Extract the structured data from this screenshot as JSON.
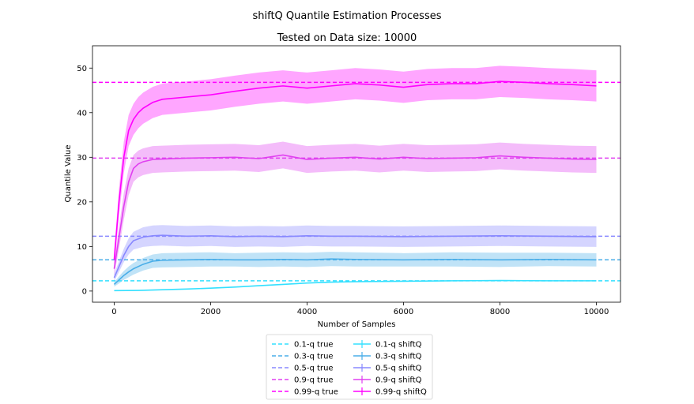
{
  "chart_data": {
    "type": "line",
    "suptitle": "shiftQ Quantile Estimation Processes",
    "title": "Tested on Data size: 10000",
    "xlabel": "Number of Samples",
    "ylabel": "Quantile Value",
    "xlim": [
      -450,
      10500
    ],
    "ylim": [
      -2.5,
      55
    ],
    "xticks": [
      0,
      2000,
      4000,
      6000,
      8000,
      10000
    ],
    "yticks": [
      0,
      10,
      20,
      30,
      40,
      50
    ],
    "grid": false,
    "legend_position": "below plot, two columns",
    "true_lines": [
      {
        "name": "0.1-q true",
        "value": 2.3,
        "color": "#33e0ff"
      },
      {
        "name": "0.3-q true",
        "value": 7.0,
        "color": "#4aaee8"
      },
      {
        "name": "0.5-q true",
        "value": 12.3,
        "color": "#8888ff"
      },
      {
        "name": "0.9-q true",
        "value": 29.8,
        "color": "#e040f0"
      },
      {
        "name": "0.99-q true",
        "value": 46.8,
        "color": "#ff00ff"
      }
    ],
    "series": [
      {
        "name": "0.1-q shiftQ",
        "color": "#33e0ff",
        "x": [
          0,
          500,
          1000,
          1500,
          2000,
          2500,
          3000,
          3500,
          4000,
          4500,
          5000,
          6000,
          7000,
          8000,
          9000,
          10000
        ],
        "y": [
          0.1,
          0.15,
          0.3,
          0.45,
          0.65,
          0.9,
          1.2,
          1.5,
          1.8,
          2.0,
          2.1,
          2.2,
          2.3,
          2.35,
          2.3,
          2.3
        ],
        "err": [
          0.05,
          0.05,
          0.05,
          0.06,
          0.06,
          0.07,
          0.08,
          0.08,
          0.1,
          0.1,
          0.1,
          0.12,
          0.12,
          0.12,
          0.12,
          0.12
        ]
      },
      {
        "name": "0.3-q shiftQ",
        "color": "#4aaee8",
        "x": [
          0,
          100,
          200,
          300,
          400,
          600,
          800,
          1000,
          1500,
          2000,
          2500,
          3000,
          3500,
          4000,
          4500,
          5000,
          6000,
          7000,
          8000,
          9000,
          10000
        ],
        "y": [
          1.5,
          2.5,
          3.5,
          4.3,
          5.0,
          6.0,
          6.7,
          6.9,
          7.0,
          7.1,
          7.0,
          7.0,
          7.1,
          7.0,
          7.2,
          7.1,
          7.0,
          7.1,
          7.0,
          7.1,
          7.0
        ],
        "err": [
          0.5,
          0.8,
          1.0,
          1.2,
          1.3,
          1.4,
          1.5,
          1.6,
          1.6,
          1.6,
          1.5,
          1.6,
          1.6,
          1.6,
          1.6,
          1.6,
          1.5,
          1.6,
          1.6,
          1.5,
          1.5
        ]
      },
      {
        "name": "0.5-q shiftQ",
        "color": "#8888ff",
        "x": [
          0,
          100,
          200,
          300,
          400,
          600,
          800,
          1000,
          1500,
          2000,
          2500,
          3000,
          3500,
          4000,
          4500,
          5000,
          6000,
          7000,
          8000,
          9000,
          10000
        ],
        "y": [
          3.0,
          5.5,
          8.0,
          10.0,
          11.3,
          12.1,
          12.4,
          12.5,
          12.3,
          12.4,
          12.2,
          12.3,
          12.2,
          12.4,
          12.3,
          12.3,
          12.2,
          12.3,
          12.4,
          12.3,
          12.2
        ],
        "err": [
          0.8,
          1.2,
          1.5,
          1.8,
          2.0,
          2.2,
          2.3,
          2.3,
          2.3,
          2.3,
          2.3,
          2.3,
          2.3,
          2.3,
          2.3,
          2.3,
          2.3,
          2.3,
          2.3,
          2.3,
          2.3
        ]
      },
      {
        "name": "0.9-q shiftQ",
        "color": "#e040f0",
        "x": [
          0,
          100,
          200,
          300,
          400,
          500,
          600,
          800,
          1000,
          1500,
          2000,
          2500,
          3000,
          3500,
          4000,
          4500,
          5000,
          5500,
          6000,
          6500,
          7000,
          7500,
          8000,
          8500,
          9000,
          9500,
          10000
        ],
        "y": [
          5.0,
          12.0,
          19.0,
          24.5,
          27.5,
          28.5,
          29.0,
          29.5,
          29.6,
          29.8,
          29.9,
          30.0,
          29.7,
          30.5,
          29.5,
          29.8,
          30.0,
          29.6,
          30.0,
          29.7,
          29.8,
          29.9,
          30.3,
          30.0,
          29.8,
          29.6,
          29.5
        ],
        "err": [
          1.5,
          2.5,
          3.0,
          3.0,
          3.0,
          3.0,
          3.0,
          3.0,
          3.0,
          3.0,
          3.0,
          3.0,
          3.0,
          3.0,
          3.0,
          3.0,
          3.0,
          3.0,
          3.0,
          3.0,
          3.0,
          3.0,
          3.0,
          3.0,
          3.0,
          3.0,
          3.0
        ]
      },
      {
        "name": "0.99-q shiftQ",
        "color": "#ff00ff",
        "x": [
          0,
          100,
          200,
          300,
          400,
          500,
          600,
          800,
          1000,
          1500,
          2000,
          2500,
          3000,
          3500,
          4000,
          4500,
          5000,
          5500,
          6000,
          6500,
          7000,
          7500,
          8000,
          8500,
          9000,
          9500,
          10000
        ],
        "y": [
          7.0,
          20.0,
          30.0,
          36.0,
          38.5,
          40.0,
          41.0,
          42.3,
          43.0,
          43.5,
          44.0,
          44.8,
          45.5,
          46.0,
          45.5,
          46.0,
          46.5,
          46.2,
          45.7,
          46.3,
          46.5,
          46.5,
          47.0,
          46.8,
          46.5,
          46.3,
          46.0
        ],
        "err": [
          2.0,
          3.0,
          3.5,
          3.5,
          3.5,
          3.5,
          3.5,
          3.5,
          3.5,
          3.5,
          3.5,
          3.5,
          3.5,
          3.5,
          3.5,
          3.5,
          3.5,
          3.5,
          3.5,
          3.5,
          3.5,
          3.5,
          3.5,
          3.5,
          3.5,
          3.5,
          3.5
        ]
      }
    ],
    "legend_true": [
      "0.1-q true",
      "0.3-q true",
      "0.5-q true",
      "0.9-q true",
      "0.99-q true"
    ],
    "legend_shiftq": [
      "0.1-q shiftQ",
      "0.3-q shiftQ",
      "0.5-q shiftQ",
      "0.9-q shiftQ",
      "0.99-q shiftQ"
    ]
  }
}
